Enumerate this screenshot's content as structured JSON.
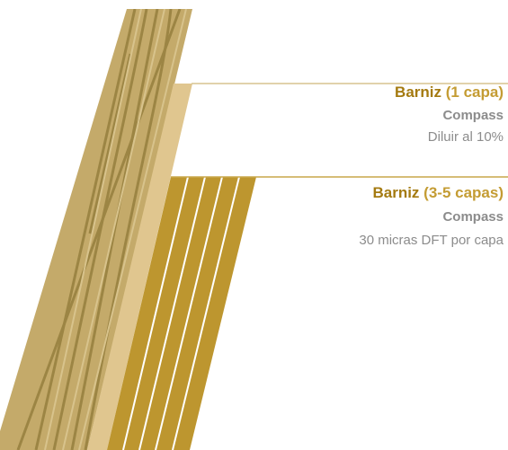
{
  "layers": [
    {
      "name": "Barniz",
      "detail": "(1 capa)",
      "brand": "Compass",
      "note": "Diluir al 10%"
    },
    {
      "name": "Barniz",
      "detail": "(3-5 capas)",
      "brand": "Compass",
      "note": "30 micras DFT por capa"
    }
  ]
}
